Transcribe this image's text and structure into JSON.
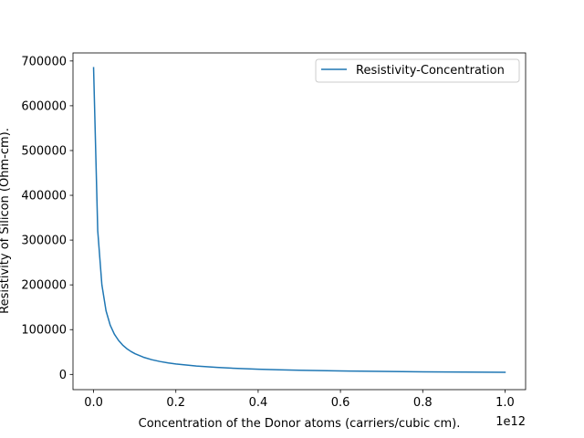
{
  "chart_data": {
    "type": "line",
    "xlabel": "Concentration of the Donor atoms (carriers/cubic cm).",
    "ylabel": "Resistivity of Silicon (Ohm-cm).",
    "x_offset_text": "1e12",
    "xlim": [
      -0.05,
      1.05
    ],
    "ylim": [
      -34000,
      718000
    ],
    "xticks": [
      0.0,
      0.2,
      0.4,
      0.6,
      0.8,
      1.0
    ],
    "xtick_labels": [
      "0.0",
      "0.2",
      "0.4",
      "0.6",
      "0.8",
      "1.0"
    ],
    "yticks": [
      0,
      100000,
      200000,
      300000,
      400000,
      500000,
      600000,
      700000
    ],
    "ytick_labels": [
      "0",
      "100000",
      "200000",
      "300000",
      "400000",
      "500000",
      "600000",
      "700000"
    ],
    "grid": false,
    "legend_position": "upper right",
    "series": [
      {
        "name": "Resistivity-Concentration",
        "color": "#1f77b4",
        "x": [
          0.0,
          0.0101,
          0.0202,
          0.0303,
          0.0404,
          0.0505,
          0.0606,
          0.0707,
          0.0808,
          0.0909,
          0.101,
          0.1212,
          0.1414,
          0.1616,
          0.1818,
          0.2,
          0.25,
          0.3,
          0.35,
          0.4,
          0.45,
          0.5,
          0.55,
          0.6,
          0.65,
          0.7,
          0.75,
          0.8,
          0.85,
          0.9,
          0.95,
          1.0
        ],
        "y": [
          685000,
          321000,
          200000,
          142000,
          110000,
          90000,
          76000,
          65500,
          57500,
          51200,
          46100,
          38400,
          32900,
          28800,
          25600,
          23300,
          18700,
          15600,
          13300,
          11700,
          10400,
          9300,
          8500,
          7800,
          7200,
          6700,
          6200,
          5800,
          5500,
          5200,
          4900,
          4700
        ]
      }
    ]
  }
}
